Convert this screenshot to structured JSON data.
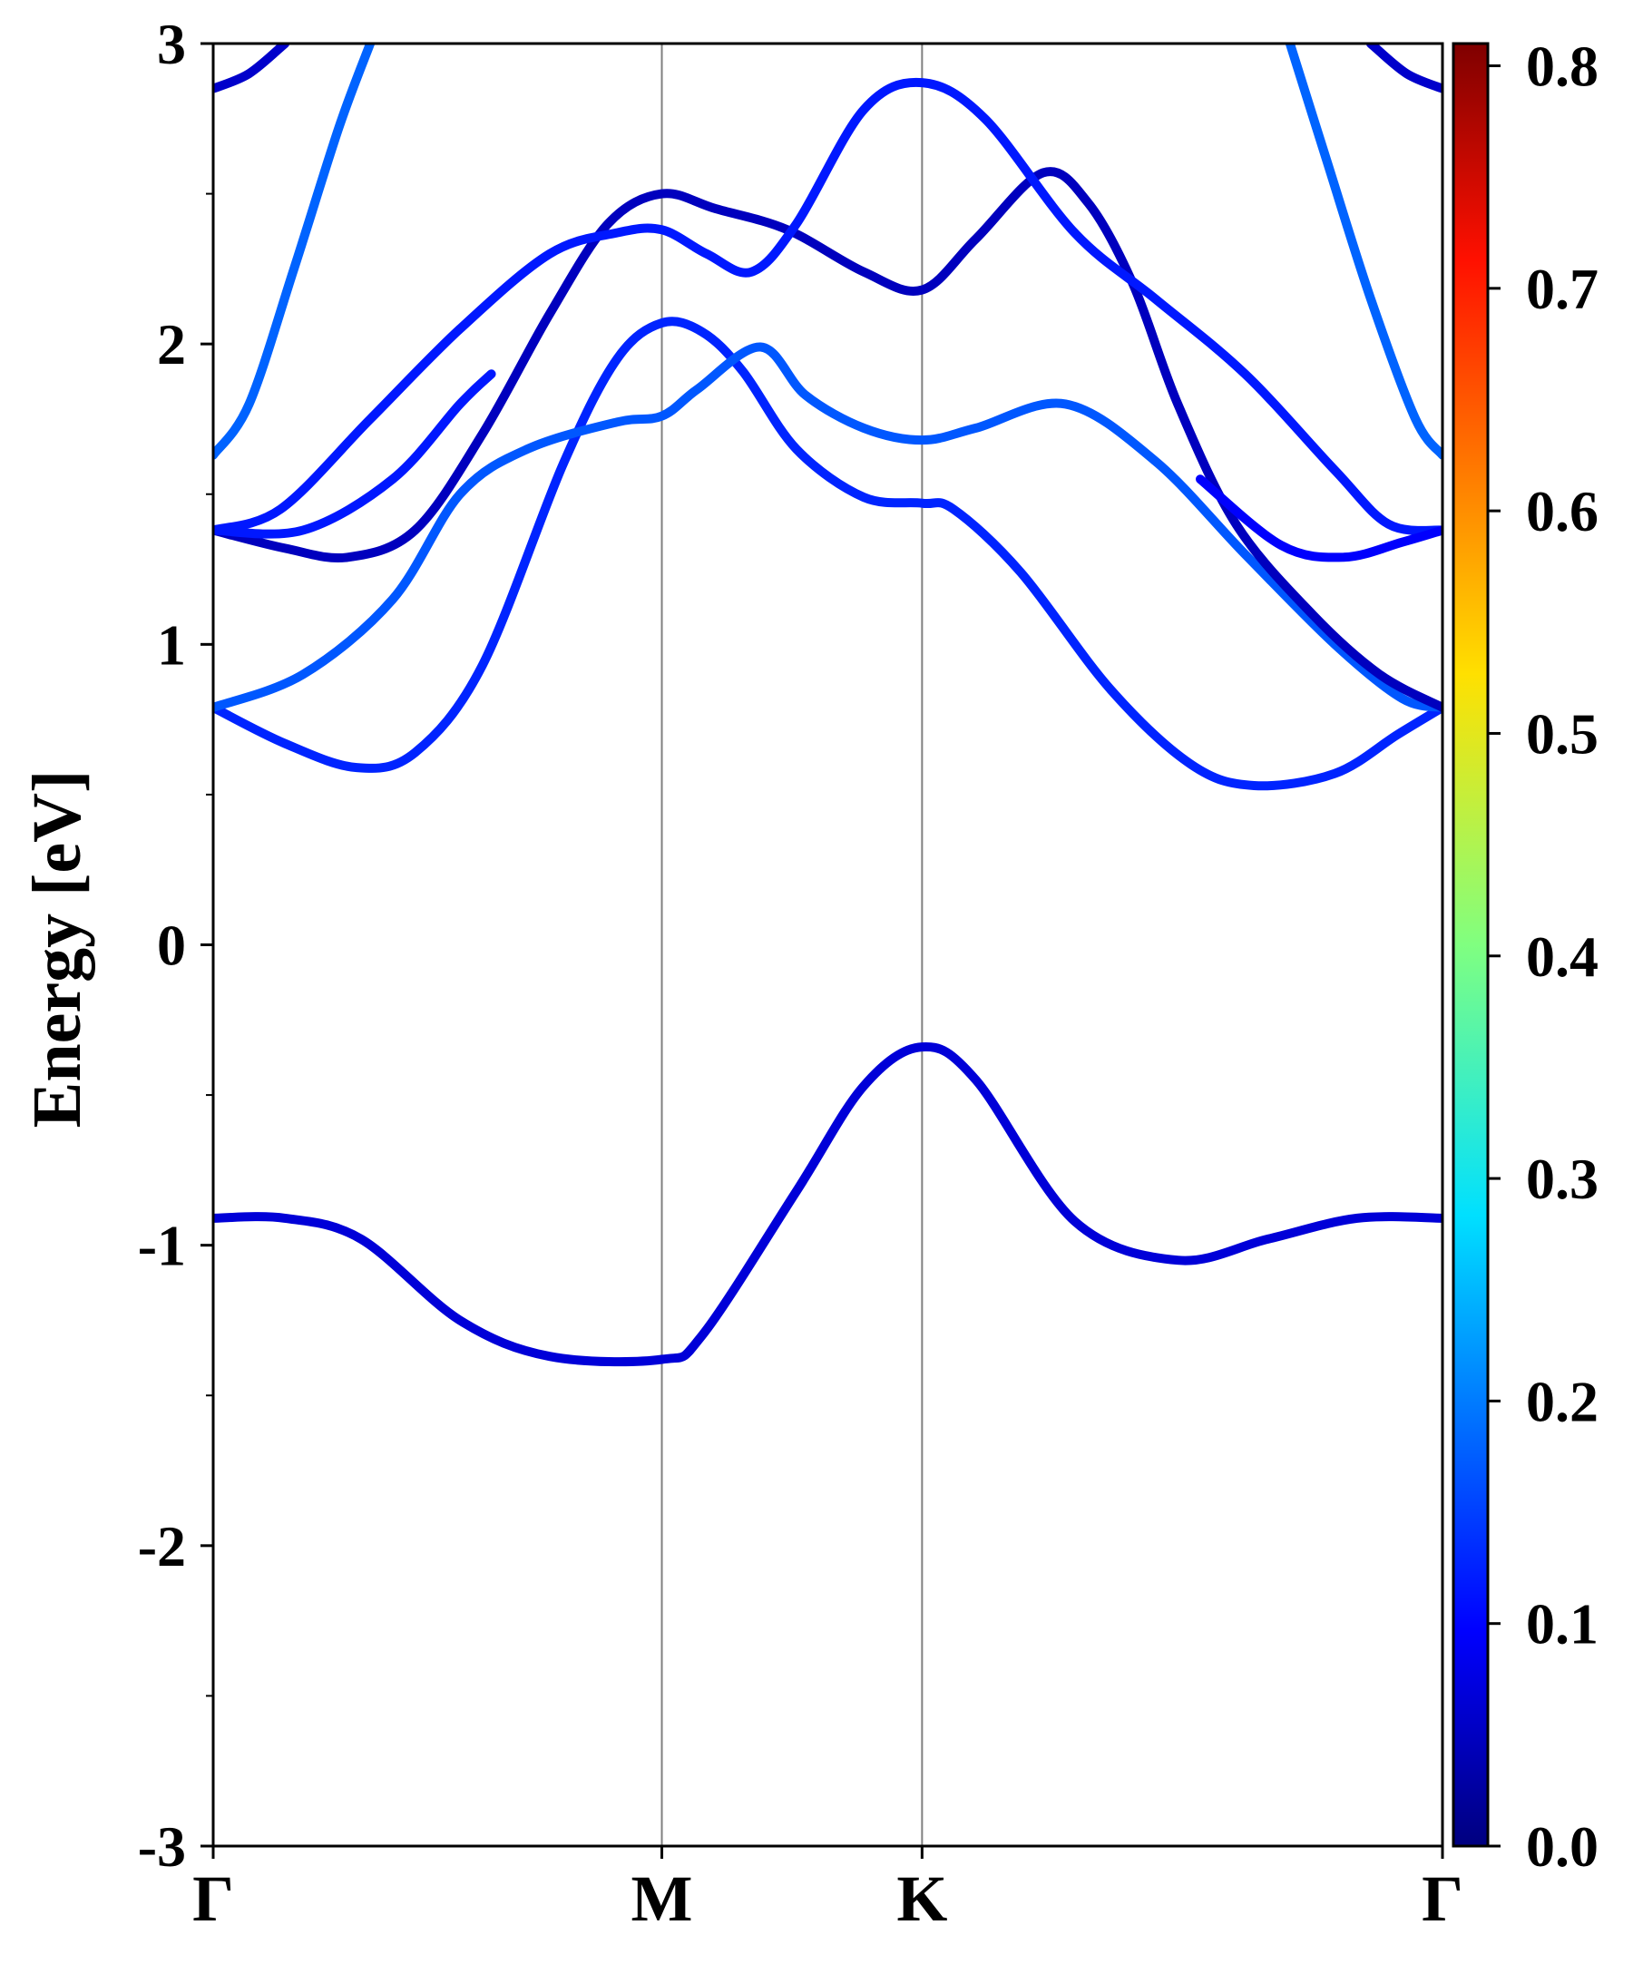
{
  "chart_data": {
    "type": "line",
    "title": "",
    "xlabel": "",
    "ylabel": "Energy [eV]",
    "ylim": [
      -3,
      3
    ],
    "xlim": [
      0,
      2.74
    ],
    "y_ticks": [
      -3,
      -2,
      -1,
      0,
      1,
      2,
      3
    ],
    "y_tick_labels": [
      "-3",
      "-2",
      "-1",
      "0",
      "1",
      "2",
      "3"
    ],
    "y_minor_ticks": [
      -2.5,
      -1.5,
      -0.5,
      0.5,
      1.5,
      2.5
    ],
    "high_symmetry_points": [
      {
        "label": "Γ",
        "x": 0
      },
      {
        "label": "M",
        "x": 1.0
      },
      {
        "label": "K",
        "x": 1.58
      },
      {
        "label": "Γ",
        "x": 2.74
      }
    ],
    "colorbar": {
      "colormap": "jet",
      "range": [
        0.0,
        0.81
      ],
      "ticks": [
        0.0,
        0.1,
        0.2,
        0.3,
        0.4,
        0.5,
        0.6,
        0.7,
        0.8
      ],
      "tick_labels": [
        "0.0",
        "0.1",
        "0.2",
        "0.3",
        "0.4",
        "0.5",
        "0.6",
        "0.7",
        "0.8"
      ]
    },
    "grid": false,
    "series": [
      {
        "color_value": 0.07,
        "points": [
          [
            0,
            -0.91
          ],
          [
            0.16,
            -0.91
          ],
          [
            0.33,
            -0.98
          ],
          [
            0.55,
            -1.25
          ],
          [
            0.75,
            -1.37
          ],
          [
            1.0,
            -1.38
          ],
          [
            1.09,
            -1.3
          ],
          [
            1.3,
            -0.82
          ],
          [
            1.45,
            -0.47
          ],
          [
            1.58,
            -0.34
          ],
          [
            1.7,
            -0.45
          ],
          [
            1.92,
            -0.92
          ],
          [
            2.15,
            -1.05
          ],
          [
            2.35,
            -0.98
          ],
          [
            2.55,
            -0.91
          ],
          [
            2.74,
            -0.91
          ]
        ]
      },
      {
        "color_value": 0.13,
        "points": [
          [
            0,
            0.79
          ],
          [
            0.16,
            0.67
          ],
          [
            0.32,
            0.59
          ],
          [
            0.45,
            0.64
          ],
          [
            0.6,
            0.93
          ],
          [
            0.78,
            1.6
          ],
          [
            0.9,
            1.95
          ],
          [
            1.0,
            2.07
          ],
          [
            1.09,
            2.04
          ],
          [
            1.18,
            1.91
          ],
          [
            1.3,
            1.65
          ],
          [
            1.45,
            1.49
          ],
          [
            1.58,
            1.47
          ],
          [
            1.65,
            1.45
          ],
          [
            1.8,
            1.24
          ],
          [
            2.0,
            0.85
          ],
          [
            2.18,
            0.6
          ],
          [
            2.32,
            0.53
          ],
          [
            2.5,
            0.57
          ],
          [
            2.64,
            0.7
          ],
          [
            2.74,
            0.79
          ]
        ]
      },
      {
        "color_value": 0.17,
        "points": [
          [
            0,
            0.79
          ],
          [
            0.2,
            0.9
          ],
          [
            0.4,
            1.15
          ],
          [
            0.55,
            1.5
          ],
          [
            0.7,
            1.65
          ],
          [
            0.9,
            1.74
          ],
          [
            1.0,
            1.76
          ],
          [
            1.08,
            1.85
          ],
          [
            1.22,
            1.99
          ],
          [
            1.32,
            1.83
          ],
          [
            1.45,
            1.72
          ],
          [
            1.58,
            1.68
          ],
          [
            1.7,
            1.72
          ],
          [
            1.9,
            1.8
          ],
          [
            2.1,
            1.61
          ],
          [
            2.3,
            1.3
          ],
          [
            2.5,
            1.0
          ],
          [
            2.65,
            0.82
          ],
          [
            2.74,
            0.79
          ]
        ]
      },
      {
        "color_value": 0.05,
        "points": [
          [
            0,
            1.38
          ],
          [
            0.16,
            1.32
          ],
          [
            0.3,
            1.29
          ],
          [
            0.45,
            1.38
          ],
          [
            0.6,
            1.7
          ],
          [
            0.75,
            2.1
          ],
          [
            0.88,
            2.4
          ],
          [
            1.0,
            2.5
          ],
          [
            1.12,
            2.45
          ],
          [
            1.28,
            2.38
          ],
          [
            1.45,
            2.24
          ],
          [
            1.58,
            2.18
          ],
          [
            1.7,
            2.35
          ],
          [
            1.85,
            2.57
          ],
          [
            1.95,
            2.47
          ],
          [
            2.05,
            2.2
          ],
          [
            2.15,
            1.8
          ],
          [
            2.28,
            1.4
          ],
          [
            2.45,
            1.1
          ],
          [
            2.6,
            0.9
          ],
          [
            2.74,
            0.79
          ]
        ]
      },
      {
        "color_value": 0.12,
        "points": [
          [
            0,
            1.38
          ],
          [
            0.15,
            1.45
          ],
          [
            0.35,
            1.75
          ],
          [
            0.55,
            2.05
          ],
          [
            0.75,
            2.3
          ],
          [
            0.9,
            2.37
          ],
          [
            1.0,
            2.38
          ],
          [
            1.1,
            2.3
          ],
          [
            1.2,
            2.24
          ],
          [
            1.3,
            2.4
          ],
          [
            1.45,
            2.78
          ],
          [
            1.58,
            2.87
          ],
          [
            1.72,
            2.75
          ],
          [
            1.92,
            2.37
          ],
          [
            2.1,
            2.15
          ],
          [
            2.3,
            1.9
          ],
          [
            2.5,
            1.58
          ],
          [
            2.62,
            1.4
          ],
          [
            2.74,
            1.38
          ]
        ]
      },
      {
        "color_value": 0.12,
        "points": [
          [
            0,
            1.38
          ],
          [
            0.2,
            1.38
          ],
          [
            0.4,
            1.55
          ],
          [
            0.55,
            1.8
          ],
          [
            0.62,
            1.9
          ]
        ]
      },
      {
        "color_value": 0.1,
        "points": [
          [
            2.2,
            1.55
          ],
          [
            2.38,
            1.33
          ],
          [
            2.52,
            1.29
          ],
          [
            2.65,
            1.34
          ],
          [
            2.74,
            1.38
          ]
        ]
      },
      {
        "color_value": 0.18,
        "points": [
          [
            0,
            1.63
          ],
          [
            0.08,
            1.8
          ],
          [
            0.18,
            2.25
          ],
          [
            0.28,
            2.72
          ],
          [
            0.35,
            3.0
          ]
        ]
      },
      {
        "color_value": 0.18,
        "points": [
          [
            2.4,
            3.0
          ],
          [
            2.48,
            2.62
          ],
          [
            2.58,
            2.15
          ],
          [
            2.68,
            1.75
          ],
          [
            2.74,
            1.63
          ]
        ]
      },
      {
        "color_value": 0.06,
        "points": [
          [
            0,
            2.85
          ],
          [
            0.08,
            2.9
          ],
          [
            0.16,
            3.0
          ]
        ]
      },
      {
        "color_value": 0.06,
        "points": [
          [
            2.58,
            3.0
          ],
          [
            2.66,
            2.9
          ],
          [
            2.74,
            2.85
          ]
        ]
      }
    ]
  }
}
